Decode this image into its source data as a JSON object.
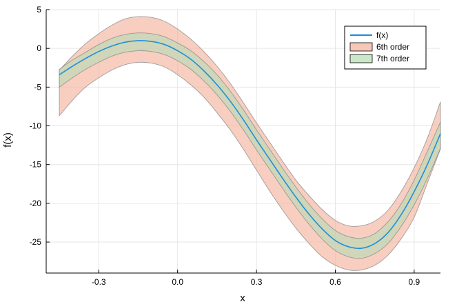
{
  "chart_data": {
    "type": "area",
    "xlabel": "x",
    "ylabel": "f(x)",
    "xlim": [
      -0.5,
      1.0
    ],
    "ylim": [
      -29.0,
      5.0
    ],
    "x_ticks": [
      -0.3,
      0.0,
      0.3,
      0.6,
      0.9
    ],
    "x_tick_labels": [
      "-0.3",
      "0.0",
      "0.3",
      "0.6",
      "0.9"
    ],
    "y_ticks": [
      5,
      0,
      -5,
      -10,
      -15,
      -20,
      -25
    ],
    "y_tick_labels": [
      "5",
      "0",
      "-5",
      "-10",
      "-15",
      "-20",
      "-25"
    ],
    "grid": true,
    "legend_position": "top-right",
    "x": [
      -0.45,
      -0.4,
      -0.35,
      -0.3,
      -0.25,
      -0.2,
      -0.15,
      -0.1,
      -0.05,
      0.0,
      0.05,
      0.1,
      0.15,
      0.2,
      0.25,
      0.3,
      0.35,
      0.4,
      0.45,
      0.5,
      0.55,
      0.6,
      0.65,
      0.7,
      0.75,
      0.8,
      0.85,
      0.9,
      0.95,
      1.0
    ],
    "series": [
      {
        "name": "f(x)",
        "kind": "line",
        "color": "#1f8fd8",
        "values": [
          -3.4,
          -2.3,
          -1.3,
          -0.4,
          0.3,
          0.8,
          1.0,
          0.9,
          0.5,
          -0.3,
          -1.4,
          -2.9,
          -4.7,
          -6.8,
          -9.2,
          -11.8,
          -14.3,
          -16.8,
          -19.2,
          -21.4,
          -23.3,
          -24.8,
          -25.6,
          -25.8,
          -25.2,
          -23.8,
          -21.5,
          -18.5,
          -15.0,
          -11.0
        ]
      },
      {
        "name": "6th order",
        "kind": "band",
        "color": "#f4b09a",
        "lower": [
          -8.7,
          -6.7,
          -5.0,
          -3.8,
          -2.8,
          -2.1,
          -1.8,
          -1.9,
          -2.4,
          -3.4,
          -4.7,
          -6.3,
          -8.3,
          -10.5,
          -13.0,
          -15.7,
          -18.4,
          -20.9,
          -23.2,
          -25.2,
          -26.9,
          -28.0,
          -28.6,
          -28.6,
          -28.0,
          -26.7,
          -24.6,
          -21.8,
          -17.4,
          -13.0
        ],
        "upper": [
          -2.8,
          -1.0,
          0.6,
          1.9,
          3.0,
          3.8,
          4.1,
          4.0,
          3.5,
          2.5,
          1.2,
          -0.4,
          -2.3,
          -4.5,
          -7.0,
          -9.6,
          -12.1,
          -14.6,
          -17.0,
          -19.0,
          -20.8,
          -22.2,
          -22.9,
          -22.9,
          -22.3,
          -20.9,
          -18.5,
          -15.4,
          -11.6,
          -6.9
        ]
      },
      {
        "name": "7th order",
        "kind": "band",
        "color": "#b7dbb4",
        "lower": [
          -5.0,
          -3.8,
          -2.7,
          -1.8,
          -1.0,
          -0.5,
          -0.3,
          -0.4,
          -0.8,
          -1.6,
          -2.7,
          -4.2,
          -6.0,
          -8.1,
          -10.5,
          -13.1,
          -15.6,
          -18.1,
          -20.5,
          -22.7,
          -24.6,
          -26.1,
          -26.9,
          -27.1,
          -26.5,
          -25.2,
          -23.0,
          -20.2,
          -16.8,
          -12.9
        ],
        "upper": [
          -2.7,
          -1.5,
          -0.5,
          0.5,
          1.3,
          1.8,
          2.0,
          1.9,
          1.5,
          0.7,
          -0.3,
          -1.7,
          -3.4,
          -5.5,
          -7.9,
          -10.5,
          -13.0,
          -15.5,
          -17.9,
          -20.1,
          -22.0,
          -23.5,
          -24.3,
          -24.5,
          -23.9,
          -22.4,
          -20.1,
          -17.0,
          -13.3,
          -9.5
        ]
      }
    ]
  }
}
